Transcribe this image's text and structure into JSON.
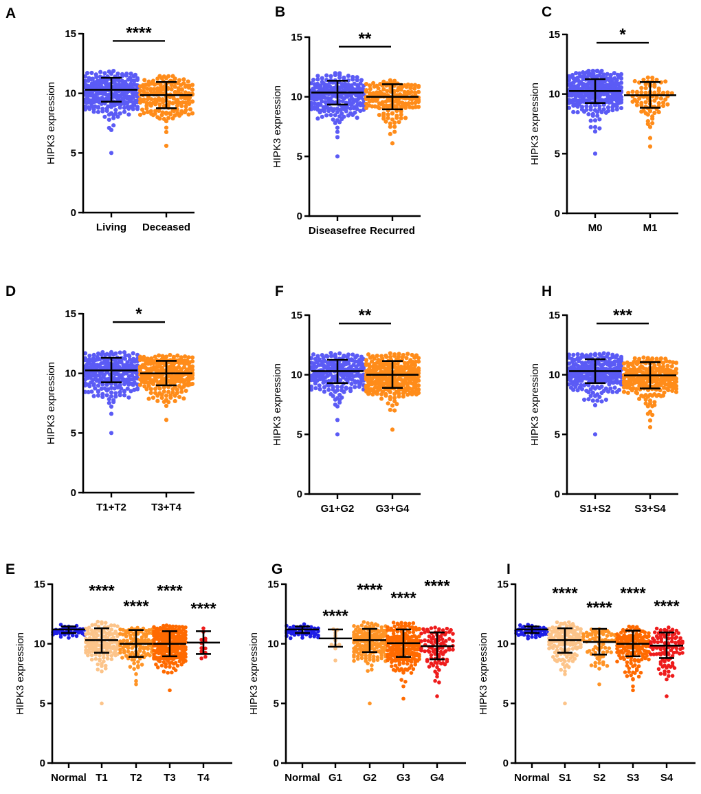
{
  "chart_data": [
    {
      "panel": "A",
      "type": "scatter",
      "ylabel": "HIPK3 expression",
      "ylim": [
        0,
        15
      ],
      "yticks": [
        0,
        5,
        10,
        15
      ],
      "categories": [
        "Living",
        "Deceased"
      ],
      "groups": [
        {
          "name": "Living",
          "color": "#5b5bf5",
          "mean": 10.3,
          "err_low": 9.3,
          "err_high": 11.3,
          "min": 5.0,
          "max": 11.9,
          "n": 260
        },
        {
          "name": "Deceased",
          "color": "#ff8c1a",
          "mean": 9.85,
          "err_low": 8.75,
          "err_high": 10.95,
          "min": 5.6,
          "max": 11.5,
          "n": 170
        }
      ],
      "significance": [
        {
          "label": "****",
          "between": [
            0,
            1
          ],
          "y": 14.4
        }
      ]
    },
    {
      "panel": "B",
      "type": "scatter",
      "ylabel": "HIPK3 expression",
      "ylim": [
        0,
        15
      ],
      "yticks": [
        0,
        5,
        10,
        15
      ],
      "categories": [
        "Diseasefree",
        "Recurred"
      ],
      "groups": [
        {
          "name": "Diseasefree",
          "color": "#5b5bf5",
          "mean": 10.35,
          "err_low": 9.35,
          "err_high": 11.35,
          "min": 5.0,
          "max": 12.0,
          "n": 230
        },
        {
          "name": "Recurred",
          "color": "#ff8c1a",
          "mean": 10.0,
          "err_low": 8.95,
          "err_high": 11.05,
          "min": 6.1,
          "max": 11.4,
          "n": 160
        }
      ],
      "significance": [
        {
          "label": "**",
          "between": [
            0,
            1
          ],
          "y": 14.2
        }
      ]
    },
    {
      "panel": "C",
      "type": "scatter",
      "ylabel": "HIPK3 expression",
      "ylim": [
        0,
        15
      ],
      "yticks": [
        0,
        5,
        10,
        15
      ],
      "categories": [
        "M0",
        "M1"
      ],
      "groups": [
        {
          "name": "M0",
          "color": "#5b5bf5",
          "mean": 10.25,
          "err_low": 9.25,
          "err_high": 11.25,
          "min": 5.0,
          "max": 12.0,
          "n": 320
        },
        {
          "name": "M1",
          "color": "#ff8c1a",
          "mean": 9.9,
          "err_low": 8.85,
          "err_high": 11.0,
          "min": 5.6,
          "max": 11.4,
          "n": 80
        }
      ],
      "significance": [
        {
          "label": "*",
          "between": [
            0,
            1
          ],
          "y": 14.3
        }
      ]
    },
    {
      "panel": "D",
      "type": "scatter",
      "ylabel": "HIPK3 expression",
      "ylim": [
        0,
        15
      ],
      "yticks": [
        0,
        5,
        10,
        15
      ],
      "categories": [
        "T1+T2",
        "T3+T4"
      ],
      "groups": [
        {
          "name": "T1+T2",
          "color": "#5b5bf5",
          "mean": 10.25,
          "err_low": 9.25,
          "err_high": 11.3,
          "min": 5.0,
          "max": 11.9,
          "n": 260
        },
        {
          "name": "T3+T4",
          "color": "#ff8c1a",
          "mean": 10.0,
          "err_low": 9.0,
          "err_high": 11.05,
          "min": 6.1,
          "max": 11.6,
          "n": 230
        }
      ],
      "significance": [
        {
          "label": "*",
          "between": [
            0,
            1
          ],
          "y": 14.3
        }
      ]
    },
    {
      "panel": "F",
      "type": "scatter",
      "ylabel": "HIPK3 expression",
      "ylim": [
        0,
        15
      ],
      "yticks": [
        0,
        5,
        10,
        15
      ],
      "categories": [
        "G1+G2",
        "G3+G4"
      ],
      "groups": [
        {
          "name": "G1+G2",
          "color": "#5b5bf5",
          "mean": 10.3,
          "err_low": 9.3,
          "err_high": 11.25,
          "min": 5.0,
          "max": 11.9,
          "n": 210
        },
        {
          "name": "G3+G4",
          "color": "#ff8c1a",
          "mean": 10.0,
          "err_low": 8.9,
          "err_high": 11.15,
          "min": 5.4,
          "max": 11.9,
          "n": 290
        }
      ],
      "significance": [
        {
          "label": "**",
          "between": [
            0,
            1
          ],
          "y": 14.3
        }
      ]
    },
    {
      "panel": "H",
      "type": "scatter",
      "ylabel": "HIPK3 expression",
      "ylim": [
        0,
        15
      ],
      "yticks": [
        0,
        5,
        10,
        15
      ],
      "categories": [
        "S1+S2",
        "S3+S4"
      ],
      "groups": [
        {
          "name": "S1+S2",
          "color": "#5b5bf5",
          "mean": 10.3,
          "err_low": 9.3,
          "err_high": 11.3,
          "min": 5.0,
          "max": 11.9,
          "n": 270
        },
        {
          "name": "S3+S4",
          "color": "#ff8c1a",
          "mean": 9.95,
          "err_low": 8.85,
          "err_high": 11.05,
          "min": 5.6,
          "max": 11.5,
          "n": 230
        }
      ],
      "significance": [
        {
          "label": "***",
          "between": [
            0,
            1
          ],
          "y": 14.3
        }
      ]
    },
    {
      "panel": "E",
      "type": "scatter",
      "ylabel": "HIPK3 expression",
      "ylim": [
        0,
        15
      ],
      "yticks": [
        0,
        5,
        10,
        15
      ],
      "categories": [
        "Normal",
        "T1",
        "T2",
        "T3",
        "T4"
      ],
      "groups": [
        {
          "name": "Normal",
          "color": "#1f1fe6",
          "mean": 11.2,
          "err_low": 10.9,
          "err_high": 11.45,
          "min": 10.5,
          "max": 11.7,
          "n": 50
        },
        {
          "name": "T1",
          "color": "#fcc48a",
          "mean": 10.3,
          "err_low": 9.25,
          "err_high": 11.3,
          "min": 5.0,
          "max": 11.9,
          "n": 140
        },
        {
          "name": "T2",
          "color": "#ff9426",
          "mean": 10.0,
          "err_low": 8.9,
          "err_high": 11.15,
          "min": 6.6,
          "max": 11.4,
          "n": 110
        },
        {
          "name": "T3",
          "color": "#ff6a00",
          "mean": 10.0,
          "err_low": 8.95,
          "err_high": 11.05,
          "min": 6.1,
          "max": 11.6,
          "n": 220
        },
        {
          "name": "T4",
          "color": "#ee1c1c",
          "mean": 10.1,
          "err_low": 9.15,
          "err_high": 11.05,
          "min": 8.8,
          "max": 11.3,
          "n": 12
        }
      ],
      "significance": [
        {
          "label": "****",
          "group": 1,
          "y": 14.5
        },
        {
          "label": "****",
          "group": 2,
          "y": 13.2
        },
        {
          "label": "****",
          "group": 3,
          "y": 14.5
        },
        {
          "label": "****",
          "group": 4,
          "y": 13.0
        }
      ]
    },
    {
      "panel": "G",
      "type": "scatter",
      "ylabel": "HIPK3 expression",
      "ylim": [
        0,
        15
      ],
      "yticks": [
        0,
        5,
        10,
        15
      ],
      "categories": [
        "Normal",
        "G1",
        "G2",
        "G3",
        "G4"
      ],
      "groups": [
        {
          "name": "Normal",
          "color": "#1f1fe6",
          "mean": 11.2,
          "err_low": 10.9,
          "err_high": 11.45,
          "min": 10.5,
          "max": 11.7,
          "n": 50
        },
        {
          "name": "G1",
          "color": "#fcc48a",
          "mean": 10.45,
          "err_low": 9.75,
          "err_high": 11.2,
          "min": 8.6,
          "max": 11.25,
          "n": 11
        },
        {
          "name": "G2",
          "color": "#ff9426",
          "mean": 10.3,
          "err_low": 9.3,
          "err_high": 11.25,
          "min": 5.0,
          "max": 11.9,
          "n": 180
        },
        {
          "name": "G3",
          "color": "#ff6a00",
          "mean": 10.05,
          "err_low": 8.9,
          "err_high": 11.2,
          "min": 5.4,
          "max": 11.9,
          "n": 200
        },
        {
          "name": "G4",
          "color": "#ee1c1c",
          "mean": 9.8,
          "err_low": 8.7,
          "err_high": 10.95,
          "min": 5.6,
          "max": 11.4,
          "n": 90
        }
      ],
      "significance": [
        {
          "label": "****",
          "group": 1,
          "y": 12.4
        },
        {
          "label": "****",
          "group": 2,
          "y": 14.6
        },
        {
          "label": "****",
          "group": 3,
          "y": 13.9
        },
        {
          "label": "****",
          "group": 4,
          "y": 14.9
        }
      ]
    },
    {
      "panel": "I",
      "type": "scatter",
      "ylabel": "HIPK3 expression",
      "ylim": [
        0,
        15
      ],
      "yticks": [
        0,
        5,
        10,
        15
      ],
      "categories": [
        "Normal",
        "S1",
        "S2",
        "S3",
        "S4"
      ],
      "groups": [
        {
          "name": "Normal",
          "color": "#1f1fe6",
          "mean": 11.2,
          "err_low": 10.9,
          "err_high": 11.45,
          "min": 10.5,
          "max": 11.7,
          "n": 50
        },
        {
          "name": "S1",
          "color": "#fcc48a",
          "mean": 10.3,
          "err_low": 9.25,
          "err_high": 11.3,
          "min": 5.0,
          "max": 11.9,
          "n": 140
        },
        {
          "name": "S2",
          "color": "#ff9426",
          "mean": 10.15,
          "err_low": 9.1,
          "err_high": 11.25,
          "min": 6.6,
          "max": 11.3,
          "n": 70
        },
        {
          "name": "S3",
          "color": "#ff6a00",
          "mean": 10.0,
          "err_low": 8.95,
          "err_high": 11.1,
          "min": 6.1,
          "max": 11.5,
          "n": 150
        },
        {
          "name": "S4",
          "color": "#ee1c1c",
          "mean": 9.85,
          "err_low": 8.8,
          "err_high": 10.95,
          "min": 5.6,
          "max": 11.4,
          "n": 100
        }
      ],
      "significance": [
        {
          "label": "****",
          "group": 1,
          "y": 14.3
        },
        {
          "label": "****",
          "group": 2,
          "y": 13.1
        },
        {
          "label": "****",
          "group": 3,
          "y": 14.3
        },
        {
          "label": "****",
          "group": 4,
          "y": 13.2
        }
      ]
    }
  ]
}
